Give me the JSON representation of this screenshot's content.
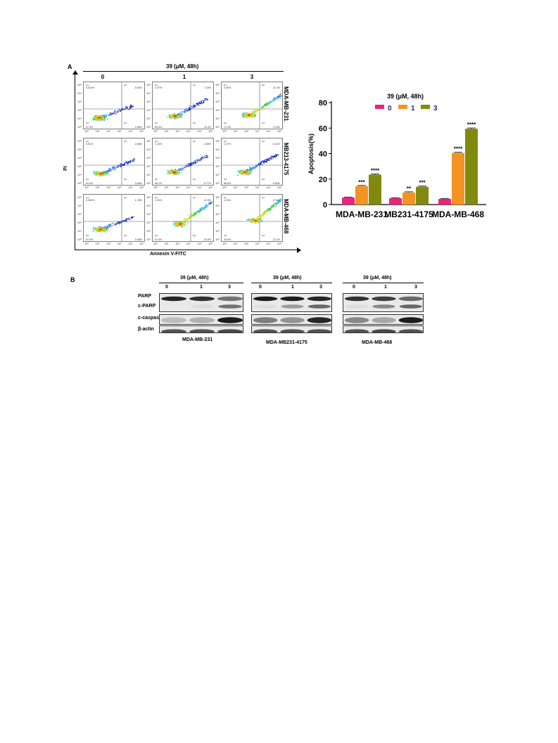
{
  "panel_a": {
    "letter": "A",
    "treatment_header": "39 (μM, 48h)",
    "concentrations": [
      "0",
      "1",
      "3"
    ],
    "cell_lines_rows": [
      "MDA-MB-231",
      "MB213-4175",
      "MDA-MB-468"
    ],
    "y_axis_label": "PI",
    "x_axis_label": "Annexin V-FITC",
    "quadrant_labels": [
      "Q1",
      "Q2",
      "Q3",
      "Q4"
    ],
    "tick_labels_x": [
      "10⁰",
      "10¹",
      "10²",
      "10³",
      "10⁴",
      "10⁵"
    ],
    "tick_labels_y": [
      "10⁰",
      "10¹",
      "10²",
      "10³",
      "10⁴",
      "10⁵"
    ],
    "quadrant_percentages": [
      [
        [
          "0.043%",
          "0.00%",
          "97.5%",
          "2.56%"
        ],
        [
          "1.07%",
          "7.34%",
          "85.9%",
          "11.0%"
        ],
        [
          "0.95%",
          "11.3%",
          "72.0%",
          "13.5%"
        ]
      ],
      [
        [
          "0.51%",
          "2.66%",
          "92.8%",
          "3.66%"
        ],
        [
          "1.13%",
          "4.98%",
          "86.1%",
          "6.77%"
        ],
        [
          "1.37%",
          "6.11%",
          "86.8%",
          "8.55%"
        ]
      ],
      [
        [
          "0.050%",
          "1.25%",
          "97.8%",
          "2.66%"
        ],
        [
          "1.04%",
          "16.9%",
          "67.9%",
          "24.0%"
        ],
        [
          "1.23%",
          "37.6%",
          "39.5%",
          "22.1%"
        ]
      ]
    ]
  },
  "chart_data": {
    "type": "bar",
    "title": "39 (μM, 48h)",
    "ylabel": "Apoptosis(%)",
    "xlabel": "",
    "ylim": [
      0,
      80
    ],
    "yticks": [
      0,
      20,
      40,
      60,
      80
    ],
    "categories": [
      "MDA-MB-231",
      "MB231-4175",
      "MDA-MB-468"
    ],
    "legend_position": "top",
    "series": [
      {
        "name": "0",
        "color": "#e8257a",
        "values": [
          5.5,
          5.0,
          4.5
        ],
        "errors": [
          0.4,
          0.4,
          0.3
        ],
        "annotations": [
          "",
          "",
          ""
        ]
      },
      {
        "name": "1",
        "color": "#f39322",
        "values": [
          14.5,
          9.5,
          40.5
        ],
        "errors": [
          0.5,
          0.5,
          0.5
        ],
        "annotations": [
          "***",
          "**",
          "****"
        ]
      },
      {
        "name": "3",
        "color": "#808a0f",
        "values": [
          23.5,
          14.0,
          59.5
        ],
        "errors": [
          0.5,
          0.5,
          0.6
        ],
        "annotations": [
          "****",
          "***",
          "****"
        ]
      }
    ]
  },
  "panel_b": {
    "letter": "B",
    "treatment_header": "39 (μM, 48h)",
    "lanes": [
      "0",
      "1",
      "3"
    ],
    "proteins": [
      "PARP",
      "c-PARP",
      "c-caspase7",
      "β-actin"
    ],
    "blots": [
      {
        "cell_line": "MDA-MB-231"
      },
      {
        "cell_line": "MDA-MB231-4175"
      },
      {
        "cell_line": "MDA-MB-468"
      }
    ]
  },
  "colors": {
    "series_0": "#e8257a",
    "series_1": "#f39322",
    "series_3": "#808a0f",
    "legend_text": "#1f2a8a"
  }
}
